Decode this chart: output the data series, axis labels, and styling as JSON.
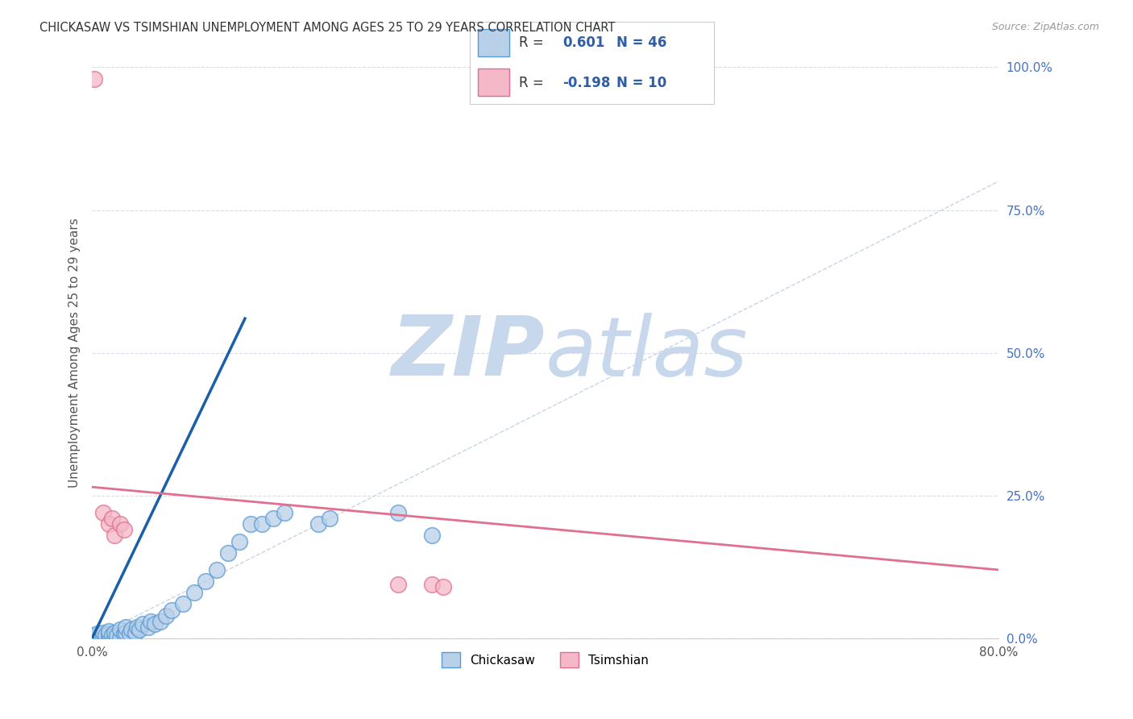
{
  "title": "CHICKASAW VS TSIMSHIAN UNEMPLOYMENT AMONG AGES 25 TO 29 YEARS CORRELATION CHART",
  "source": "Source: ZipAtlas.com",
  "ylabel": "Unemployment Among Ages 25 to 29 years",
  "xlim": [
    0.0,
    0.8
  ],
  "ylim": [
    0.0,
    1.0
  ],
  "xticks": [
    0.0,
    0.1,
    0.2,
    0.3,
    0.4,
    0.5,
    0.6,
    0.7,
    0.8
  ],
  "yticks_right": [
    0.0,
    0.25,
    0.5,
    0.75,
    1.0
  ],
  "yticklabels_right": [
    "0.0%",
    "25.0%",
    "50.0%",
    "75.0%",
    "100.0%"
  ],
  "chickasaw_color": "#b8d0e8",
  "chickasaw_edge_color": "#5b9bd5",
  "tsimshian_color": "#f4b8c8",
  "tsimshian_edge_color": "#e07090",
  "chickasaw_R": 0.601,
  "chickasaw_N": 46,
  "tsimshian_R": -0.198,
  "tsimshian_N": 10,
  "legend_blue": "#2e5ea8",
  "chickasaw_scatter_x": [
    0.0,
    0.0,
    0.003,
    0.005,
    0.008,
    0.01,
    0.01,
    0.012,
    0.015,
    0.015,
    0.015,
    0.018,
    0.02,
    0.02,
    0.022,
    0.025,
    0.025,
    0.028,
    0.03,
    0.03,
    0.033,
    0.035,
    0.038,
    0.04,
    0.042,
    0.045,
    0.05,
    0.052,
    0.055,
    0.06,
    0.065,
    0.07,
    0.08,
    0.09,
    0.1,
    0.11,
    0.12,
    0.13,
    0.14,
    0.15,
    0.16,
    0.17,
    0.2,
    0.21,
    0.27,
    0.3
  ],
  "chickasaw_scatter_y": [
    0.0,
    0.005,
    0.003,
    0.008,
    0.005,
    0.0,
    0.01,
    0.005,
    0.0,
    0.008,
    0.012,
    0.005,
    0.0,
    0.01,
    0.005,
    0.0,
    0.015,
    0.008,
    0.01,
    0.02,
    0.008,
    0.015,
    0.01,
    0.02,
    0.015,
    0.025,
    0.02,
    0.03,
    0.025,
    0.03,
    0.04,
    0.05,
    0.06,
    0.08,
    0.1,
    0.12,
    0.15,
    0.17,
    0.2,
    0.2,
    0.21,
    0.22,
    0.2,
    0.21,
    0.22,
    0.18
  ],
  "tsimshian_scatter_x": [
    0.002,
    0.01,
    0.015,
    0.018,
    0.02,
    0.025,
    0.028,
    0.27,
    0.3,
    0.31
  ],
  "tsimshian_scatter_y": [
    0.98,
    0.22,
    0.2,
    0.21,
    0.18,
    0.2,
    0.19,
    0.095,
    0.095,
    0.09
  ],
  "chickasaw_line_x": [
    0.0,
    0.135
  ],
  "chickasaw_line_y": [
    0.0,
    0.56
  ],
  "tsimshian_line_x": [
    0.0,
    0.8
  ],
  "tsimshian_line_y": [
    0.265,
    0.12
  ],
  "diagonal_color": "#c8d4e8",
  "grid_color": "#d8dce8",
  "background_color": "#ffffff",
  "watermark_zip_color": "#c8d8ec",
  "watermark_atlas_color": "#c8d8ec"
}
